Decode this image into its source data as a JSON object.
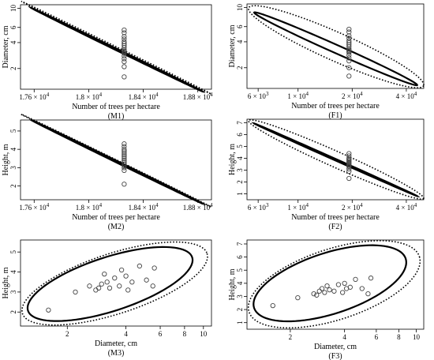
{
  "chart_data": [
    {
      "id": "M1",
      "type": "scatter",
      "title": "(M1)",
      "xlabel": "Number of trees per hectare",
      "ylabel": "Diameter, cm",
      "x_scale": "linear",
      "y_scale": "log",
      "xlim": [
        17500,
        18900
      ],
      "ylim": [
        1.15,
        11
      ],
      "xticks": [
        {
          "v": 17600,
          "base": "1.76",
          "exp": "4"
        },
        {
          "v": 18000,
          "base": "1.8",
          "exp": "4"
        },
        {
          "v": 18400,
          "base": "1.84",
          "exp": "4"
        },
        {
          "v": 18800,
          "base": "1.88",
          "exp": "4"
        }
      ],
      "yticks": [
        {
          "v": 2,
          "t": "2"
        },
        {
          "v": 4,
          "t": "4"
        },
        {
          "v": 6,
          "t": "6"
        },
        {
          "v": 10,
          "t": "10"
        }
      ],
      "ellipse_inner": {
        "center": [
          18200,
          3.3
        ],
        "x_span": [
          17580,
          18830
        ],
        "y_span": [
          1.25,
          8.8
        ]
      },
      "ellipse_outer": {
        "center": [
          18200,
          3.3
        ],
        "x_span": [
          17510,
          18890
        ],
        "y_span": [
          1.17,
          10.5
        ]
      },
      "points": [
        {
          "x": 18260,
          "y": 1.6
        },
        {
          "x": 18260,
          "y": 2.1
        },
        {
          "x": 18260,
          "y": 2.4
        },
        {
          "x": 18260,
          "y": 2.6
        },
        {
          "x": 18260,
          "y": 2.8
        },
        {
          "x": 18260,
          "y": 3.0
        },
        {
          "x": 18260,
          "y": 3.1
        },
        {
          "x": 18260,
          "y": 3.2
        },
        {
          "x": 18260,
          "y": 3.3
        },
        {
          "x": 18260,
          "y": 3.5
        },
        {
          "x": 18260,
          "y": 3.7
        },
        {
          "x": 18260,
          "y": 3.9
        },
        {
          "x": 18260,
          "y": 4.1
        },
        {
          "x": 18260,
          "y": 4.4
        },
        {
          "x": 18260,
          "y": 4.7
        },
        {
          "x": 18260,
          "y": 5.2
        },
        {
          "x": 18260,
          "y": 5.6
        }
      ]
    },
    {
      "id": "F1",
      "type": "scatter",
      "title": "(F1)",
      "xlabel": "Number of trees per hectare",
      "ylabel": "Diameter, cm",
      "x_scale": "log",
      "y_scale": "log",
      "xlim": [
        5200,
        50000
      ],
      "ylim": [
        1.15,
        11
      ],
      "xticks": [
        {
          "v": 6000,
          "base": "6",
          "exp": "3"
        },
        {
          "v": 10000,
          "base": "1",
          "exp": "4"
        },
        {
          "v": 20000,
          "base": "2",
          "exp": "4"
        },
        {
          "v": 40000,
          "base": "4",
          "exp": "4"
        }
      ],
      "yticks": [
        {
          "v": 2,
          "t": "2"
        },
        {
          "v": 4,
          "t": "4"
        },
        {
          "v": 6,
          "t": "6"
        },
        {
          "v": 10,
          "t": "10"
        }
      ],
      "ellipse_inner": {
        "center": [
          16500,
          3.3
        ],
        "x_span": [
          5700,
          46000
        ],
        "y_span": [
          1.25,
          8.8
        ]
      },
      "ellipse_outer": {
        "center": [
          16500,
          3.3
        ],
        "x_span": [
          5300,
          50000
        ],
        "y_span": [
          1.17,
          10.5
        ]
      },
      "points": [
        {
          "x": 19200,
          "y": 1.6
        },
        {
          "x": 19200,
          "y": 2.0
        },
        {
          "x": 19200,
          "y": 2.4
        },
        {
          "x": 19200,
          "y": 2.6
        },
        {
          "x": 19200,
          "y": 2.8
        },
        {
          "x": 19200,
          "y": 3.0
        },
        {
          "x": 19200,
          "y": 3.1
        },
        {
          "x": 19200,
          "y": 3.2
        },
        {
          "x": 19200,
          "y": 3.3
        },
        {
          "x": 19200,
          "y": 3.5
        },
        {
          "x": 19200,
          "y": 3.7
        },
        {
          "x": 19200,
          "y": 3.9
        },
        {
          "x": 19200,
          "y": 4.1
        },
        {
          "x": 19200,
          "y": 4.4
        },
        {
          "x": 19200,
          "y": 4.7
        },
        {
          "x": 19200,
          "y": 5.2
        },
        {
          "x": 19200,
          "y": 5.6
        }
      ]
    },
    {
      "id": "M2",
      "type": "scatter",
      "title": "(M2)",
      "xlabel": "Number of trees per hectare",
      "ylabel": "Height, m",
      "x_scale": "linear",
      "y_scale": "linear",
      "xlim": [
        17500,
        18900
      ],
      "ylim": [
        1.25,
        5.6
      ],
      "xticks": [
        {
          "v": 17600,
          "base": "1.76",
          "exp": "4"
        },
        {
          "v": 18000,
          "base": "1.8",
          "exp": "4"
        },
        {
          "v": 18400,
          "base": "1.84",
          "exp": "4"
        },
        {
          "v": 18800,
          "base": "1.88",
          "exp": "4"
        }
      ],
      "yticks": [
        {
          "v": 2,
          "t": "2"
        },
        {
          "v": 3,
          "t": "3"
        },
        {
          "v": 4,
          "t": "4"
        },
        {
          "v": 5,
          "t": "5"
        }
      ],
      "ellipse_inner": {
        "center": [
          18200,
          3.4
        ],
        "x_span": [
          17580,
          18830
        ],
        "y_span": [
          1.45,
          5.2
        ]
      },
      "ellipse_outer": {
        "center": [
          18200,
          3.4
        ],
        "x_span": [
          17510,
          18890
        ],
        "y_span": [
          1.28,
          5.5
        ]
      },
      "points": [
        {
          "x": 18260,
          "y": 2.1
        },
        {
          "x": 18260,
          "y": 2.85
        },
        {
          "x": 18260,
          "y": 3.0
        },
        {
          "x": 18260,
          "y": 3.1
        },
        {
          "x": 18260,
          "y": 3.2
        },
        {
          "x": 18260,
          "y": 3.3
        },
        {
          "x": 18260,
          "y": 3.4
        },
        {
          "x": 18260,
          "y": 3.5
        },
        {
          "x": 18260,
          "y": 3.6
        },
        {
          "x": 18260,
          "y": 3.7
        },
        {
          "x": 18260,
          "y": 3.8
        },
        {
          "x": 18260,
          "y": 3.9
        },
        {
          "x": 18260,
          "y": 4.0
        },
        {
          "x": 18260,
          "y": 4.15
        },
        {
          "x": 18260,
          "y": 4.3
        }
      ]
    },
    {
      "id": "F2",
      "type": "scatter",
      "title": "(F2)",
      "xlabel": "Number of trees per hectare",
      "ylabel": "Height, m",
      "x_scale": "log",
      "y_scale": "linear",
      "xlim": [
        5200,
        50000
      ],
      "ylim": [
        0.5,
        7.3
      ],
      "xticks": [
        {
          "v": 6000,
          "base": "6",
          "exp": "3"
        },
        {
          "v": 10000,
          "base": "1",
          "exp": "4"
        },
        {
          "v": 20000,
          "base": "2",
          "exp": "4"
        },
        {
          "v": 40000,
          "base": "4",
          "exp": "4"
        }
      ],
      "yticks": [
        {
          "v": 1,
          "t": "1"
        },
        {
          "v": 2,
          "t": "2"
        },
        {
          "v": 3,
          "t": "3"
        },
        {
          "v": 4,
          "t": "4"
        },
        {
          "v": 5,
          "t": "5"
        },
        {
          "v": 6,
          "t": "6"
        },
        {
          "v": 7,
          "t": "7"
        }
      ],
      "ellipse_inner": {
        "center": [
          16500,
          3.9
        ],
        "x_span": [
          5700,
          46000
        ],
        "y_span": [
          0.85,
          6.9
        ]
      },
      "ellipse_outer": {
        "center": [
          16500,
          3.9
        ],
        "x_span": [
          5300,
          50000
        ],
        "y_span": [
          0.55,
          7.25
        ]
      },
      "points": [
        {
          "x": 19200,
          "y": 2.3
        },
        {
          "x": 19200,
          "y": 2.9
        },
        {
          "x": 19200,
          "y": 3.1
        },
        {
          "x": 19200,
          "y": 3.3
        },
        {
          "x": 19200,
          "y": 3.4
        },
        {
          "x": 19200,
          "y": 3.5
        },
        {
          "x": 19200,
          "y": 3.6
        },
        {
          "x": 19200,
          "y": 3.7
        },
        {
          "x": 19200,
          "y": 3.8
        },
        {
          "x": 19200,
          "y": 3.9
        },
        {
          "x": 19200,
          "y": 4.0
        },
        {
          "x": 19200,
          "y": 4.2
        },
        {
          "x": 19200,
          "y": 4.4
        }
      ]
    },
    {
      "id": "M3",
      "type": "scatter",
      "title": "(M3)",
      "xlabel": "Diameter, cm",
      "ylabel": "Height, m",
      "x_scale": "log",
      "y_scale": "linear",
      "xlim": [
        1.15,
        11
      ],
      "ylim": [
        1.3,
        5.6
      ],
      "xticks": [
        {
          "v": 2,
          "t": "2"
        },
        {
          "v": 4,
          "t": "4"
        },
        {
          "v": 6,
          "t": "6"
        },
        {
          "v": 8,
          "t": "8"
        },
        {
          "v": 10,
          "t": "10"
        }
      ],
      "yticks": [
        {
          "v": 2,
          "t": "2"
        },
        {
          "v": 3,
          "t": "3"
        },
        {
          "v": 4,
          "t": "4"
        },
        {
          "v": 5,
          "t": "5"
        }
      ],
      "ellipse_inner": {
        "center": [
          3.3,
          3.45
        ],
        "x_span": [
          1.25,
          8.8
        ],
        "y_span": [
          1.55,
          5.25
        ]
      },
      "ellipse_outer": {
        "center": [
          3.3,
          3.45
        ],
        "x_span": [
          1.17,
          10.5
        ],
        "y_span": [
          1.35,
          5.5
        ]
      },
      "points": [
        {
          "x": 1.6,
          "y": 2.1
        },
        {
          "x": 2.2,
          "y": 3.0
        },
        {
          "x": 2.6,
          "y": 3.3
        },
        {
          "x": 2.8,
          "y": 3.1
        },
        {
          "x": 2.9,
          "y": 3.2
        },
        {
          "x": 3.0,
          "y": 3.4
        },
        {
          "x": 3.1,
          "y": 3.9
        },
        {
          "x": 3.2,
          "y": 3.5
        },
        {
          "x": 3.3,
          "y": 3.2
        },
        {
          "x": 3.5,
          "y": 3.7
        },
        {
          "x": 3.7,
          "y": 3.3
        },
        {
          "x": 4.0,
          "y": 3.8
        },
        {
          "x": 4.1,
          "y": 3.1
        },
        {
          "x": 4.3,
          "y": 3.5
        },
        {
          "x": 4.7,
          "y": 4.3
        },
        {
          "x": 5.1,
          "y": 3.6
        },
        {
          "x": 5.5,
          "y": 3.3
        },
        {
          "x": 5.6,
          "y": 4.2
        },
        {
          "x": 3.8,
          "y": 4.1
        }
      ]
    },
    {
      "id": "F3",
      "type": "scatter",
      "title": "(F3)",
      "xlabel": "Diameter, cm",
      "ylabel": "Height, m",
      "x_scale": "log",
      "y_scale": "linear",
      "xlim": [
        1.15,
        11
      ],
      "ylim": [
        0.5,
        7.3
      ],
      "xticks": [
        {
          "v": 2,
          "t": "2"
        },
        {
          "v": 4,
          "t": "4"
        },
        {
          "v": 6,
          "t": "6"
        },
        {
          "v": 8,
          "t": "8"
        },
        {
          "v": 10,
          "t": "10"
        }
      ],
      "yticks": [
        {
          "v": 1,
          "t": "1"
        },
        {
          "v": 2,
          "t": "2"
        },
        {
          "v": 3,
          "t": "3"
        },
        {
          "v": 4,
          "t": "4"
        },
        {
          "v": 5,
          "t": "5"
        },
        {
          "v": 6,
          "t": "6"
        },
        {
          "v": 7,
          "t": "7"
        }
      ],
      "ellipse_inner": {
        "center": [
          3.3,
          4.0
        ],
        "x_span": [
          1.25,
          8.8
        ],
        "y_span": [
          1.1,
          6.9
        ]
      },
      "ellipse_outer": {
        "center": [
          3.3,
          4.0
        ],
        "x_span": [
          1.17,
          10.5
        ],
        "y_span": [
          0.6,
          7.25
        ]
      },
      "points": [
        {
          "x": 1.6,
          "y": 2.3
        },
        {
          "x": 2.2,
          "y": 2.9
        },
        {
          "x": 2.7,
          "y": 3.2
        },
        {
          "x": 2.8,
          "y": 3.1
        },
        {
          "x": 2.9,
          "y": 3.4
        },
        {
          "x": 3.0,
          "y": 3.6
        },
        {
          "x": 3.1,
          "y": 3.3
        },
        {
          "x": 3.2,
          "y": 3.8
        },
        {
          "x": 3.3,
          "y": 3.5
        },
        {
          "x": 3.5,
          "y": 3.4
        },
        {
          "x": 3.7,
          "y": 3.9
        },
        {
          "x": 3.9,
          "y": 3.3
        },
        {
          "x": 4.1,
          "y": 3.6
        },
        {
          "x": 4.3,
          "y": 3.7
        },
        {
          "x": 4.6,
          "y": 4.3
        },
        {
          "x": 5.0,
          "y": 3.6
        },
        {
          "x": 5.4,
          "y": 3.2
        },
        {
          "x": 5.6,
          "y": 4.4
        },
        {
          "x": 4.0,
          "y": 4.0
        }
      ]
    }
  ]
}
